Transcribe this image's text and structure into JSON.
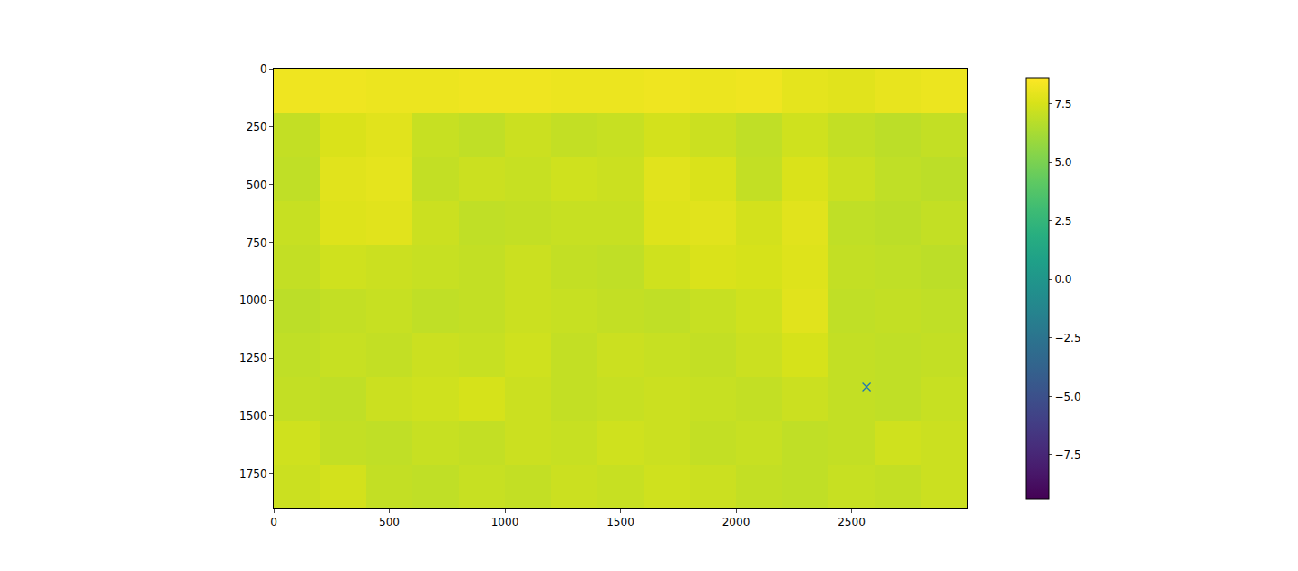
{
  "chart_data": {
    "type": "heatmap",
    "x": [
      100,
      300,
      500,
      700,
      900,
      1100,
      1300,
      1500,
      1700,
      1900,
      2100,
      2300,
      2500,
      2700,
      2900
    ],
    "y": [
      95,
      285,
      475,
      665,
      855,
      1045,
      1235,
      1425,
      1615,
      1805
    ],
    "z": [
      [
        8.2,
        8.2,
        8.1,
        8.1,
        8.2,
        8.2,
        8.1,
        8.1,
        8.2,
        8.1,
        8.2,
        7.9,
        7.8,
        8.0,
        8.1
      ],
      [
        7.0,
        7.6,
        7.8,
        7.1,
        6.9,
        7.2,
        7.0,
        7.1,
        7.4,
        7.2,
        6.9,
        7.3,
        7.0,
        6.8,
        7.0
      ],
      [
        6.9,
        7.8,
        7.9,
        7.0,
        7.2,
        7.1,
        7.3,
        7.2,
        7.8,
        7.6,
        7.0,
        7.6,
        7.2,
        6.9,
        6.8
      ],
      [
        7.1,
        7.7,
        7.8,
        7.2,
        6.9,
        7.0,
        7.1,
        7.1,
        7.7,
        7.8,
        7.4,
        7.8,
        6.9,
        6.8,
        7.0
      ],
      [
        7.0,
        7.3,
        7.2,
        7.1,
        7.0,
        7.2,
        7.0,
        6.9,
        7.3,
        7.6,
        7.5,
        7.7,
        7.0,
        6.9,
        6.8
      ],
      [
        6.8,
        7.0,
        7.1,
        6.9,
        7.0,
        7.2,
        7.1,
        7.0,
        6.9,
        7.1,
        7.3,
        7.8,
        6.9,
        7.0,
        6.9
      ],
      [
        6.9,
        7.1,
        7.0,
        7.2,
        7.1,
        7.3,
        7.0,
        7.2,
        7.1,
        7.0,
        7.2,
        7.5,
        7.0,
        6.9,
        7.0
      ],
      [
        7.0,
        6.9,
        7.2,
        7.3,
        7.5,
        7.2,
        7.0,
        7.1,
        7.2,
        7.1,
        7.0,
        7.2,
        7.0,
        6.9,
        7.1
      ],
      [
        7.3,
        7.0,
        6.9,
        7.1,
        7.0,
        7.2,
        7.1,
        7.3,
        7.2,
        7.0,
        7.1,
        6.9,
        7.0,
        7.3,
        7.2
      ],
      [
        7.2,
        7.4,
        7.0,
        6.9,
        7.1,
        7.0,
        7.2,
        7.1,
        7.3,
        7.2,
        7.0,
        6.9,
        7.1,
        7.0,
        7.2
      ]
    ],
    "xlim": [
      0,
      3000
    ],
    "ylim": [
      1900,
      0
    ],
    "xticks": [
      0,
      500,
      1000,
      1500,
      2000,
      2500
    ],
    "yticks": [
      0,
      250,
      500,
      750,
      1000,
      1250,
      1500,
      1750
    ],
    "grid": false,
    "colorbar": {
      "range": [
        -9.4,
        8.6
      ],
      "ticks": [
        {
          "value": -7.5,
          "label": "−7.5"
        },
        {
          "value": -5,
          "label": "−5.0"
        },
        {
          "value": -2.5,
          "label": "−2.5"
        },
        {
          "value": 0,
          "label": "0.0"
        },
        2.5,
        {
          "value": 5,
          "label": "5.0"
        },
        7.5
      ]
    },
    "points": {
      "x": [
        2565
      ],
      "y": [
        1375
      ],
      "marker": "x",
      "color": "#1f77b4"
    }
  }
}
